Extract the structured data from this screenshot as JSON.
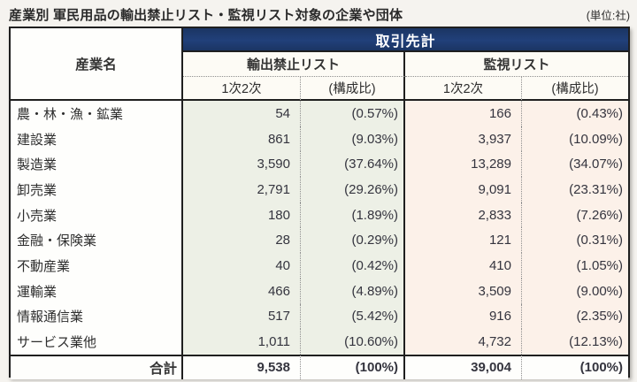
{
  "chart_data": {
    "type": "table",
    "title": "産業別 軍民用品の輸出禁止リスト・監視リスト対象の企業や団体",
    "unit": "(単位:社)",
    "banner": "取引先計",
    "row_header": "産業名",
    "column_groups": [
      "輸出禁止リスト",
      "監視リスト"
    ],
    "sub_columns": [
      "1次2次",
      "(構成比)"
    ],
    "rows": [
      {
        "industry": "農・林・漁・鉱業",
        "export_ban_count": "54",
        "export_ban_share": "(0.57%)",
        "watch_count": "166",
        "watch_share": "(0.43%)"
      },
      {
        "industry": "建設業",
        "export_ban_count": "861",
        "export_ban_share": "(9.03%)",
        "watch_count": "3,937",
        "watch_share": "(10.09%)"
      },
      {
        "industry": "製造業",
        "export_ban_count": "3,590",
        "export_ban_share": "(37.64%)",
        "watch_count": "13,289",
        "watch_share": "(34.07%)"
      },
      {
        "industry": "卸売業",
        "export_ban_count": "2,791",
        "export_ban_share": "(29.26%)",
        "watch_count": "9,091",
        "watch_share": "(23.31%)"
      },
      {
        "industry": "小売業",
        "export_ban_count": "180",
        "export_ban_share": "(1.89%)",
        "watch_count": "2,833",
        "watch_share": "(7.26%)"
      },
      {
        "industry": "金融・保険業",
        "export_ban_count": "28",
        "export_ban_share": "(0.29%)",
        "watch_count": "121",
        "watch_share": "(0.31%)"
      },
      {
        "industry": "不動産業",
        "export_ban_count": "40",
        "export_ban_share": "(0.42%)",
        "watch_count": "410",
        "watch_share": "(1.05%)"
      },
      {
        "industry": "運輸業",
        "export_ban_count": "466",
        "export_ban_share": "(4.89%)",
        "watch_count": "3,509",
        "watch_share": "(9.00%)"
      },
      {
        "industry": "情報通信業",
        "export_ban_count": "517",
        "export_ban_share": "(5.42%)",
        "watch_count": "916",
        "watch_share": "(2.35%)"
      },
      {
        "industry": "サービス業他",
        "export_ban_count": "1,011",
        "export_ban_share": "(10.60%)",
        "watch_count": "4,732",
        "watch_share": "(12.13%)"
      }
    ],
    "total": {
      "label": "合計",
      "export_ban_count": "9,538",
      "export_ban_share": "(100%)",
      "watch_count": "39,004",
      "watch_share": "(100%)"
    }
  },
  "colors": {
    "banner_bg": "#1e3a6d",
    "banner_text": "#ffffff",
    "export_ban_column_bg": "#edf0e6",
    "watch_column_bg": "#fcf1e9",
    "header_bg": "#fdfbf5",
    "page_bg": "#f5f3ef",
    "border": "#1f1f1f"
  }
}
